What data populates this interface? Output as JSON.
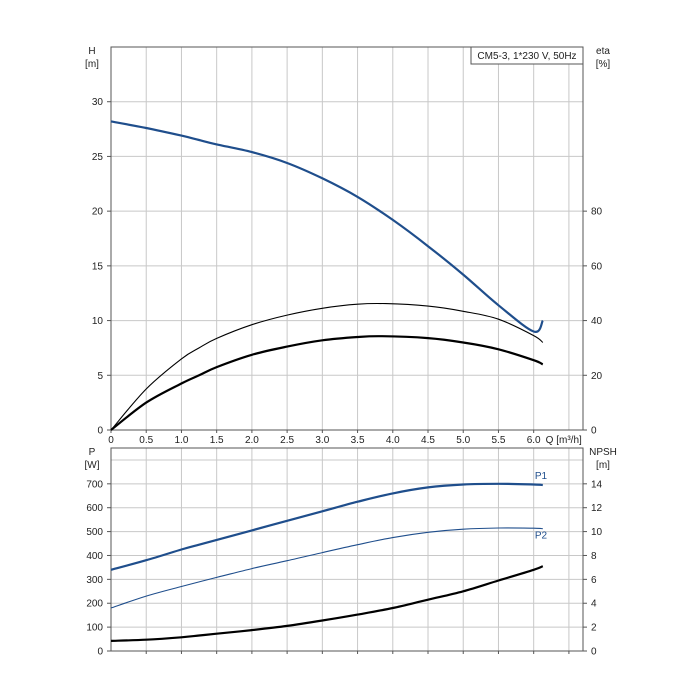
{
  "chart_data": [
    {
      "type": "line",
      "title": "CM5-3, 1*230 V, 50Hz",
      "xlabel": "Q [m³/h]",
      "x_tick_labels": [
        "0",
        "0.5",
        "1.0",
        "1.5",
        "2.0",
        "2.5",
        "3.0",
        "3.5",
        "4.0",
        "4.5",
        "5.0",
        "5.5",
        "6.0"
      ],
      "xlim": [
        0,
        6.7
      ],
      "grid": true,
      "left_axis": {
        "label": "H",
        "unit": "[m]",
        "ylim": [
          0,
          35
        ],
        "tick_labels": [
          "0",
          "5",
          "10",
          "15",
          "20",
          "25",
          "30"
        ]
      },
      "right_axis": {
        "label": "eta",
        "unit": "[%]",
        "ylim": [
          0,
          140
        ],
        "tick_labels": [
          "0",
          "20",
          "40",
          "60",
          "80"
        ]
      },
      "series": [
        {
          "role": "head",
          "axis": "left",
          "color": "#1f4e8c",
          "x": [
            0,
            0.5,
            1.0,
            1.25,
            1.5,
            2.0,
            2.5,
            3.0,
            3.5,
            4.0,
            4.5,
            5.0,
            5.5,
            6.0,
            6.13
          ],
          "y": [
            28.2,
            27.6,
            26.9,
            26.5,
            26.1,
            25.4,
            24.4,
            23.0,
            21.3,
            19.2,
            16.8,
            14.2,
            11.4,
            9.0,
            10.0
          ]
        },
        {
          "role": "efficiency",
          "axis": "right",
          "color": "#000000",
          "x": [
            0,
            0.5,
            1.0,
            1.25,
            1.5,
            2.0,
            2.5,
            3.0,
            3.5,
            3.9,
            4.5,
            5.0,
            5.5,
            6.0,
            6.13
          ],
          "y": [
            0,
            15,
            26,
            30,
            33.5,
            38.5,
            42,
            44.5,
            46,
            46.2,
            45.3,
            43.4,
            40.5,
            34.5,
            32
          ]
        },
        {
          "role": "efficiency-2",
          "axis": "right",
          "color": "#000000",
          "x": [
            0,
            0.5,
            1.0,
            1.25,
            1.5,
            2.0,
            2.5,
            3.0,
            3.5,
            3.85,
            4.5,
            5.0,
            5.5,
            6.0,
            6.13
          ],
          "y": [
            0,
            10,
            17,
            20,
            23,
            27.5,
            30.5,
            32.8,
            34,
            34.3,
            33.6,
            32,
            29.5,
            25.5,
            24
          ]
        }
      ]
    },
    {
      "type": "line",
      "xlim": [
        0,
        6.7
      ],
      "grid": true,
      "left_axis": {
        "label": "P",
        "unit": "[W]",
        "ylim": [
          0,
          850
        ],
        "tick_labels": [
          "0",
          "100",
          "200",
          "300",
          "400",
          "500",
          "600",
          "700"
        ]
      },
      "right_axis": {
        "label": "NPSH",
        "unit": "[m]",
        "ylim": [
          0,
          17
        ],
        "tick_labels": [
          "0",
          "2",
          "4",
          "6",
          "8",
          "10",
          "12",
          "14"
        ]
      },
      "series": [
        {
          "name": "P1",
          "axis": "left",
          "color": "#1f4e8c",
          "x": [
            0,
            0.5,
            1.0,
            1.25,
            1.5,
            2.0,
            2.5,
            3.0,
            3.5,
            4.0,
            4.5,
            5.0,
            5.5,
            6.0,
            6.13
          ],
          "y": [
            340,
            380,
            425,
            445,
            465,
            505,
            545,
            585,
            625,
            660,
            685,
            697,
            700,
            697,
            695
          ]
        },
        {
          "name": "P2",
          "axis": "left",
          "color": "#1f4e8c",
          "x": [
            0,
            0.5,
            1.0,
            1.5,
            2.0,
            2.5,
            3.0,
            3.5,
            4.0,
            4.5,
            5.0,
            5.5,
            6.0,
            6.13
          ],
          "y": [
            180,
            230,
            270,
            308,
            345,
            378,
            412,
            445,
            475,
            497,
            510,
            515,
            514,
            512
          ]
        },
        {
          "role": "npsh",
          "axis": "right",
          "color": "#000000",
          "x": [
            0,
            0.5,
            1.0,
            1.25,
            1.5,
            2.0,
            2.5,
            3.0,
            3.5,
            4.0,
            4.5,
            5.0,
            5.5,
            6.0,
            6.13
          ],
          "y": [
            0.85,
            0.95,
            1.15,
            1.3,
            1.45,
            1.75,
            2.1,
            2.55,
            3.05,
            3.6,
            4.3,
            5.0,
            5.9,
            6.8,
            7.1
          ]
        }
      ]
    }
  ]
}
